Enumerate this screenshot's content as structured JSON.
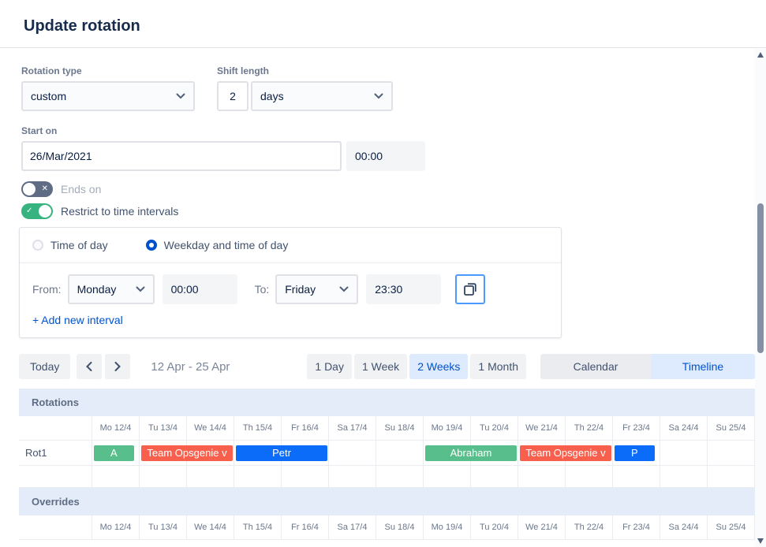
{
  "header": {
    "title": "Update rotation"
  },
  "form": {
    "rotation_type_label": "Rotation type",
    "rotation_type_value": "custom",
    "shift_length_label": "Shift length",
    "shift_length_value": "2",
    "shift_unit_value": "days",
    "start_on_label": "Start on",
    "start_date_value": "26/Mar/2021",
    "start_time_value": "00:00",
    "ends_on_label": "Ends on",
    "restrict_label": "Restrict to time intervals",
    "interval": {
      "time_of_day_label": "Time of day",
      "weekday_label": "Weekday and time of day",
      "from_label": "From:",
      "from_day": "Monday",
      "from_time": "00:00",
      "to_label": "To:",
      "to_day": "Friday",
      "to_time": "23:30",
      "add_interval_label": "+ Add new interval"
    }
  },
  "toolbar": {
    "today_label": "Today",
    "range_label": "12 Apr - 25 Apr",
    "views": [
      "1 Day",
      "1 Week",
      "2 Weeks",
      "1 Month"
    ],
    "selected_view": "2 Weeks",
    "calendar_label": "Calendar",
    "timeline_label": "Timeline"
  },
  "timeline": {
    "rotations_label": "Rotations",
    "overrides_label": "Overrides",
    "row_label": "Rot1",
    "days": [
      "Mo 12/4",
      "Tu 13/4",
      "We 14/4",
      "Th 15/4",
      "Fr 16/4",
      "Sa 17/4",
      "Su 18/4",
      "Mo 19/4",
      "Tu 20/4",
      "We 21/4",
      "Th 22/4",
      "Fr 23/4",
      "Sa 24/4",
      "Su 25/4"
    ],
    "bars": [
      {
        "label": "A",
        "color": "#58BE8B",
        "start": 0.03,
        "span": 0.85
      },
      {
        "label": "Team Opsgenie v",
        "color": "#F8604D",
        "start": 1.03,
        "span": 1.94
      },
      {
        "label": "Petr",
        "color": "#0B6CFA",
        "start": 3.03,
        "span": 1.94
      },
      {
        "label": "Abraham",
        "color": "#58BE8B",
        "start": 7.03,
        "span": 1.94
      },
      {
        "label": "Team Opsgenie v",
        "color": "#F8604D",
        "start": 9.03,
        "span": 1.94
      },
      {
        "label": "P",
        "color": "#0B6CFA",
        "start": 11.03,
        "span": 0.85
      }
    ],
    "colors": {
      "section_bg": "#E4ECFA",
      "grid_line": "#EBECF0"
    }
  }
}
